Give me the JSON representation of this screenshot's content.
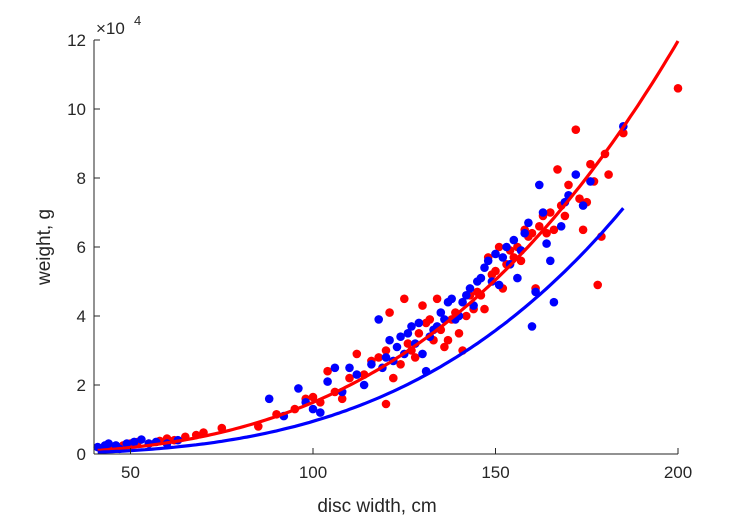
{
  "chart_data": {
    "type": "scatter",
    "title": "",
    "xlabel": "disc width, cm",
    "ylabel": "weight, g",
    "y_exponent_label": "×10",
    "y_exponent_power": "4",
    "xlim": [
      40,
      200
    ],
    "ylim": [
      0,
      12
    ],
    "x_ticks": [
      50,
      100,
      150,
      200
    ],
    "y_ticks": [
      0,
      2,
      4,
      6,
      8,
      10,
      12
    ],
    "x_tick_labels": [
      "50",
      "100",
      "150",
      "200"
    ],
    "y_tick_labels": [
      "0",
      "2",
      "4",
      "6",
      "8",
      "10",
      "12"
    ],
    "y_scale_factor": 10000,
    "grid": false,
    "legend": "none",
    "colors": {
      "red": "#ff0000",
      "blue": "#0000ff",
      "axis": "#262626"
    },
    "series": [
      {
        "color": "#ff0000",
        "kind": "scatter",
        "points": [
          [
            42,
            0.15
          ],
          [
            45,
            0.2
          ],
          [
            48,
            0.25
          ],
          [
            50,
            0.3
          ],
          [
            52,
            0.35
          ],
          [
            55,
            0.3
          ],
          [
            58,
            0.38
          ],
          [
            60,
            0.45
          ],
          [
            62,
            0.4
          ],
          [
            65,
            0.5
          ],
          [
            68,
            0.55
          ],
          [
            70,
            0.62
          ],
          [
            75,
            0.75
          ],
          [
            85,
            0.8
          ],
          [
            90,
            1.15
          ],
          [
            95,
            1.3
          ],
          [
            98,
            1.6
          ],
          [
            100,
            1.65
          ],
          [
            102,
            1.5
          ],
          [
            104,
            2.4
          ],
          [
            106,
            1.8
          ],
          [
            108,
            1.6
          ],
          [
            110,
            2.2
          ],
          [
            112,
            2.9
          ],
          [
            114,
            2.3
          ],
          [
            116,
            2.7
          ],
          [
            118,
            2.8
          ],
          [
            120,
            1.45
          ],
          [
            120,
            3.0
          ],
          [
            121,
            4.1
          ],
          [
            122,
            2.2
          ],
          [
            124,
            2.6
          ],
          [
            125,
            4.5
          ],
          [
            126,
            3.2
          ],
          [
            127,
            3.0
          ],
          [
            128,
            2.8
          ],
          [
            129,
            3.5
          ],
          [
            130,
            4.3
          ],
          [
            131,
            3.8
          ],
          [
            132,
            3.9
          ],
          [
            133,
            3.3
          ],
          [
            134,
            4.5
          ],
          [
            135,
            3.6
          ],
          [
            136,
            3.1
          ],
          [
            137,
            3.3
          ],
          [
            138,
            3.9
          ],
          [
            139,
            4.1
          ],
          [
            140,
            3.5
          ],
          [
            141,
            3.0
          ],
          [
            142,
            4.0
          ],
          [
            143,
            4.6
          ],
          [
            144,
            4.2
          ],
          [
            145,
            4.7
          ],
          [
            146,
            4.6
          ],
          [
            147,
            4.2
          ],
          [
            148,
            5.7
          ],
          [
            149,
            5.2
          ],
          [
            150,
            5.3
          ],
          [
            151,
            6.0
          ],
          [
            152,
            4.8
          ],
          [
            153,
            5.5
          ],
          [
            154,
            5.9
          ],
          [
            155,
            5.7
          ],
          [
            156,
            6.0
          ],
          [
            157,
            5.6
          ],
          [
            158,
            6.5
          ],
          [
            159,
            6.3
          ],
          [
            160,
            6.4
          ],
          [
            161,
            4.8
          ],
          [
            162,
            6.6
          ],
          [
            163,
            6.9
          ],
          [
            164,
            6.4
          ],
          [
            165,
            7.0
          ],
          [
            166,
            6.5
          ],
          [
            167,
            8.25
          ],
          [
            168,
            7.2
          ],
          [
            169,
            6.9
          ],
          [
            170,
            7.8
          ],
          [
            172,
            9.4
          ],
          [
            173,
            7.4
          ],
          [
            174,
            6.5
          ],
          [
            175,
            7.3
          ],
          [
            176,
            8.4
          ],
          [
            177,
            7.9
          ],
          [
            178,
            4.9
          ],
          [
            179,
            6.3
          ],
          [
            180,
            8.7
          ],
          [
            181,
            8.1
          ],
          [
            185,
            9.3
          ],
          [
            200,
            10.6
          ]
        ]
      },
      {
        "color": "#0000ff",
        "kind": "scatter",
        "points": [
          [
            41,
            0.2
          ],
          [
            43,
            0.25
          ],
          [
            44,
            0.3
          ],
          [
            46,
            0.25
          ],
          [
            47,
            0.15
          ],
          [
            49,
            0.3
          ],
          [
            51,
            0.35
          ],
          [
            53,
            0.42
          ],
          [
            55,
            0.3
          ],
          [
            57,
            0.35
          ],
          [
            60,
            0.3
          ],
          [
            63,
            0.4
          ],
          [
            88,
            1.6
          ],
          [
            92,
            1.1
          ],
          [
            96,
            1.9
          ],
          [
            98,
            1.5
          ],
          [
            100,
            1.3
          ],
          [
            102,
            1.2
          ],
          [
            104,
            2.1
          ],
          [
            106,
            2.5
          ],
          [
            108,
            1.8
          ],
          [
            110,
            2.5
          ],
          [
            112,
            2.3
          ],
          [
            114,
            2.0
          ],
          [
            116,
            2.6
          ],
          [
            118,
            3.9
          ],
          [
            119,
            2.5
          ],
          [
            120,
            2.8
          ],
          [
            121,
            3.3
          ],
          [
            122,
            2.7
          ],
          [
            123,
            3.1
          ],
          [
            124,
            3.4
          ],
          [
            125,
            2.9
          ],
          [
            126,
            3.5
          ],
          [
            127,
            3.7
          ],
          [
            128,
            3.2
          ],
          [
            129,
            3.8
          ],
          [
            130,
            2.9
          ],
          [
            131,
            2.4
          ],
          [
            132,
            3.4
          ],
          [
            133,
            3.6
          ],
          [
            134,
            3.7
          ],
          [
            135,
            4.1
          ],
          [
            136,
            3.9
          ],
          [
            137,
            4.4
          ],
          [
            138,
            4.5
          ],
          [
            139,
            3.9
          ],
          [
            140,
            4.0
          ],
          [
            141,
            4.4
          ],
          [
            142,
            4.6
          ],
          [
            143,
            4.8
          ],
          [
            144,
            4.3
          ],
          [
            145,
            5.0
          ],
          [
            146,
            5.1
          ],
          [
            147,
            5.4
          ],
          [
            148,
            5.6
          ],
          [
            149,
            5.0
          ],
          [
            150,
            5.8
          ],
          [
            151,
            4.9
          ],
          [
            152,
            5.7
          ],
          [
            153,
            6.0
          ],
          [
            154,
            5.5
          ],
          [
            155,
            6.2
          ],
          [
            156,
            5.1
          ],
          [
            157,
            5.9
          ],
          [
            158,
            6.4
          ],
          [
            159,
            6.7
          ],
          [
            160,
            3.7
          ],
          [
            161,
            4.7
          ],
          [
            162,
            7.8
          ],
          [
            163,
            7.0
          ],
          [
            164,
            6.1
          ],
          [
            165,
            5.6
          ],
          [
            166,
            4.4
          ],
          [
            168,
            6.6
          ],
          [
            169,
            7.3
          ],
          [
            170,
            7.5
          ],
          [
            172,
            8.1
          ],
          [
            174,
            7.2
          ],
          [
            176,
            7.9
          ],
          [
            185,
            9.5
          ]
        ]
      },
      {
        "color": "#ff0000",
        "kind": "fit-line",
        "a": 11.97,
        "b": 3.0,
        "x_range": [
          41,
          200
        ]
      },
      {
        "color": "#0000ff",
        "kind": "fit-line",
        "a": 9.2,
        "b": 3.28,
        "x_range": [
          41,
          185
        ]
      }
    ]
  }
}
